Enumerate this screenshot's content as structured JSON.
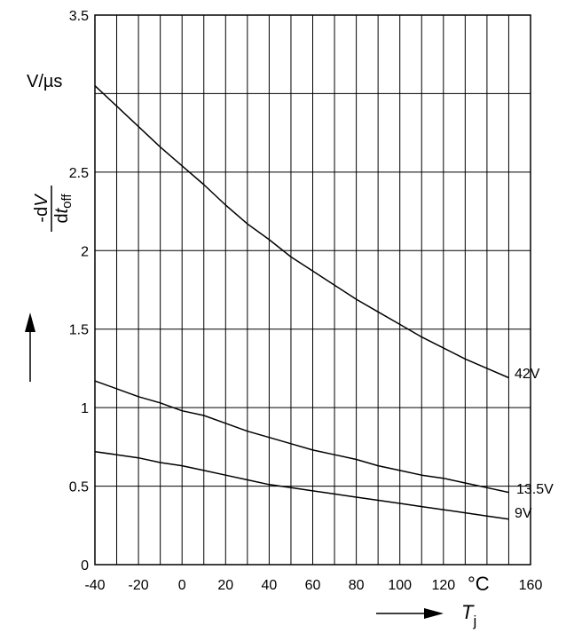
{
  "chart_data": {
    "type": "line",
    "title": "",
    "xlabel": "Tj",
    "xunit": "°C",
    "ylabel": "-dV/dtoff",
    "yunit": "V/µs",
    "xlim": [
      -40,
      160
    ],
    "ylim": [
      0,
      3.5
    ],
    "grid": true,
    "x_ticks": [
      "-40",
      "-20",
      "0",
      "20",
      "40",
      "60",
      "80",
      "100",
      "120",
      "",
      "160"
    ],
    "y_ticks": [
      "0",
      "0.5",
      "1",
      "1.5",
      "2",
      "2.5",
      "",
      "3.5"
    ],
    "series": [
      {
        "name": "42V",
        "x": [
          -40,
          -30,
          -20,
          -10,
          0,
          10,
          20,
          30,
          40,
          50,
          60,
          70,
          80,
          90,
          100,
          110,
          120,
          130,
          140,
          150
        ],
        "y": [
          3.05,
          2.92,
          2.79,
          2.66,
          2.54,
          2.42,
          2.29,
          2.17,
          2.07,
          1.96,
          1.87,
          1.78,
          1.69,
          1.61,
          1.53,
          1.45,
          1.38,
          1.31,
          1.25,
          1.19
        ]
      },
      {
        "name": "13.5V",
        "x": [
          -40,
          -30,
          -20,
          -10,
          0,
          10,
          20,
          30,
          40,
          50,
          60,
          70,
          80,
          90,
          100,
          110,
          120,
          130,
          140,
          150
        ],
        "y": [
          1.17,
          1.12,
          1.07,
          1.03,
          0.98,
          0.95,
          0.9,
          0.85,
          0.81,
          0.77,
          0.73,
          0.7,
          0.67,
          0.63,
          0.6,
          0.57,
          0.55,
          0.52,
          0.49,
          0.46
        ]
      },
      {
        "name": "9V",
        "x": [
          -40,
          -30,
          -20,
          -10,
          0,
          10,
          20,
          30,
          40,
          50,
          60,
          70,
          80,
          90,
          100,
          110,
          120,
          130,
          140,
          150
        ],
        "y": [
          0.72,
          0.7,
          0.68,
          0.65,
          0.63,
          0.6,
          0.57,
          0.54,
          0.51,
          0.49,
          0.47,
          0.45,
          0.43,
          0.41,
          0.39,
          0.37,
          0.35,
          0.33,
          0.31,
          0.29
        ]
      }
    ]
  },
  "labels": {
    "y_unit": "V/µs",
    "y_minus_d": "-d",
    "y_v": "V",
    "y_d": "d",
    "y_t": "t",
    "y_off": "off",
    "x_unit": "°C",
    "x_T": "T",
    "x_j": "j"
  }
}
